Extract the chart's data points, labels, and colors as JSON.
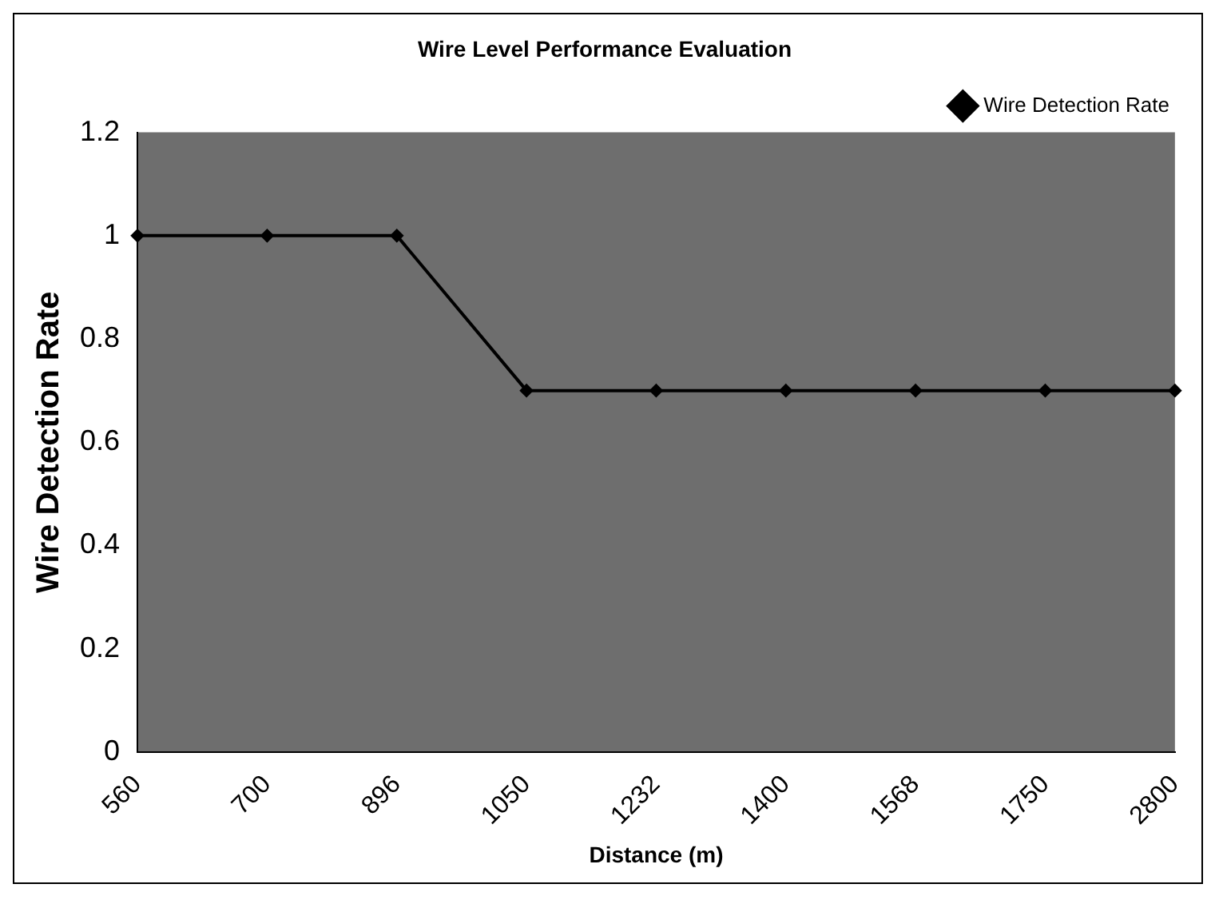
{
  "chart_data": {
    "type": "line",
    "title": "Wire Level Performance Evaluation",
    "xlabel": "Distance (m)",
    "ylabel": "Wire Detection Rate",
    "categories": [
      "560",
      "700",
      "896",
      "1050",
      "1232",
      "1400",
      "1568",
      "1750",
      "2800"
    ],
    "series": [
      {
        "name": "Wire Detection Rate",
        "color": "#000000",
        "values": [
          1,
          1,
          1,
          0.7,
          0.7,
          0.7,
          0.7,
          0.7,
          0.7
        ]
      }
    ],
    "ylim": [
      0,
      1.2
    ],
    "yticks": [
      0,
      0.2,
      0.4,
      0.6,
      0.8,
      1,
      1.2
    ],
    "grid": false,
    "legend": "top right",
    "marker": "diamond",
    "line_style": "solid"
  }
}
